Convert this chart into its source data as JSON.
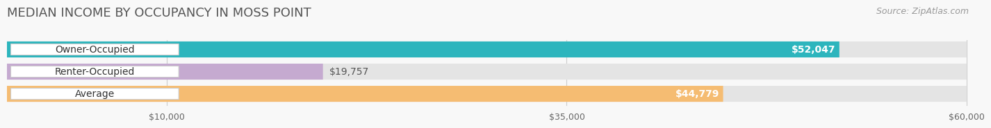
{
  "title": "MEDIAN INCOME BY OCCUPANCY IN MOSS POINT",
  "source": "Source: ZipAtlas.com",
  "categories": [
    "Owner-Occupied",
    "Renter-Occupied",
    "Average"
  ],
  "values": [
    52047,
    19757,
    44779
  ],
  "bar_colors": [
    "#2db5bd",
    "#c5aad0",
    "#f5bc72"
  ],
  "value_labels": [
    "$52,047",
    "$19,757",
    "$44,779"
  ],
  "label_inside": [
    true,
    false,
    true
  ],
  "xmin": 0,
  "xmax": 60000,
  "xticks": [
    10000,
    35000,
    60000
  ],
  "xtick_labels": [
    "$10,000",
    "$35,000",
    "$60,000"
  ],
  "bg_color": "#f5f5f5",
  "bar_track_color": "#e8e8e8",
  "title_fontsize": 13,
  "source_fontsize": 9,
  "label_fontsize": 10,
  "value_fontsize": 10,
  "bar_height": 0.72,
  "grid_color": "#d0d0d0"
}
